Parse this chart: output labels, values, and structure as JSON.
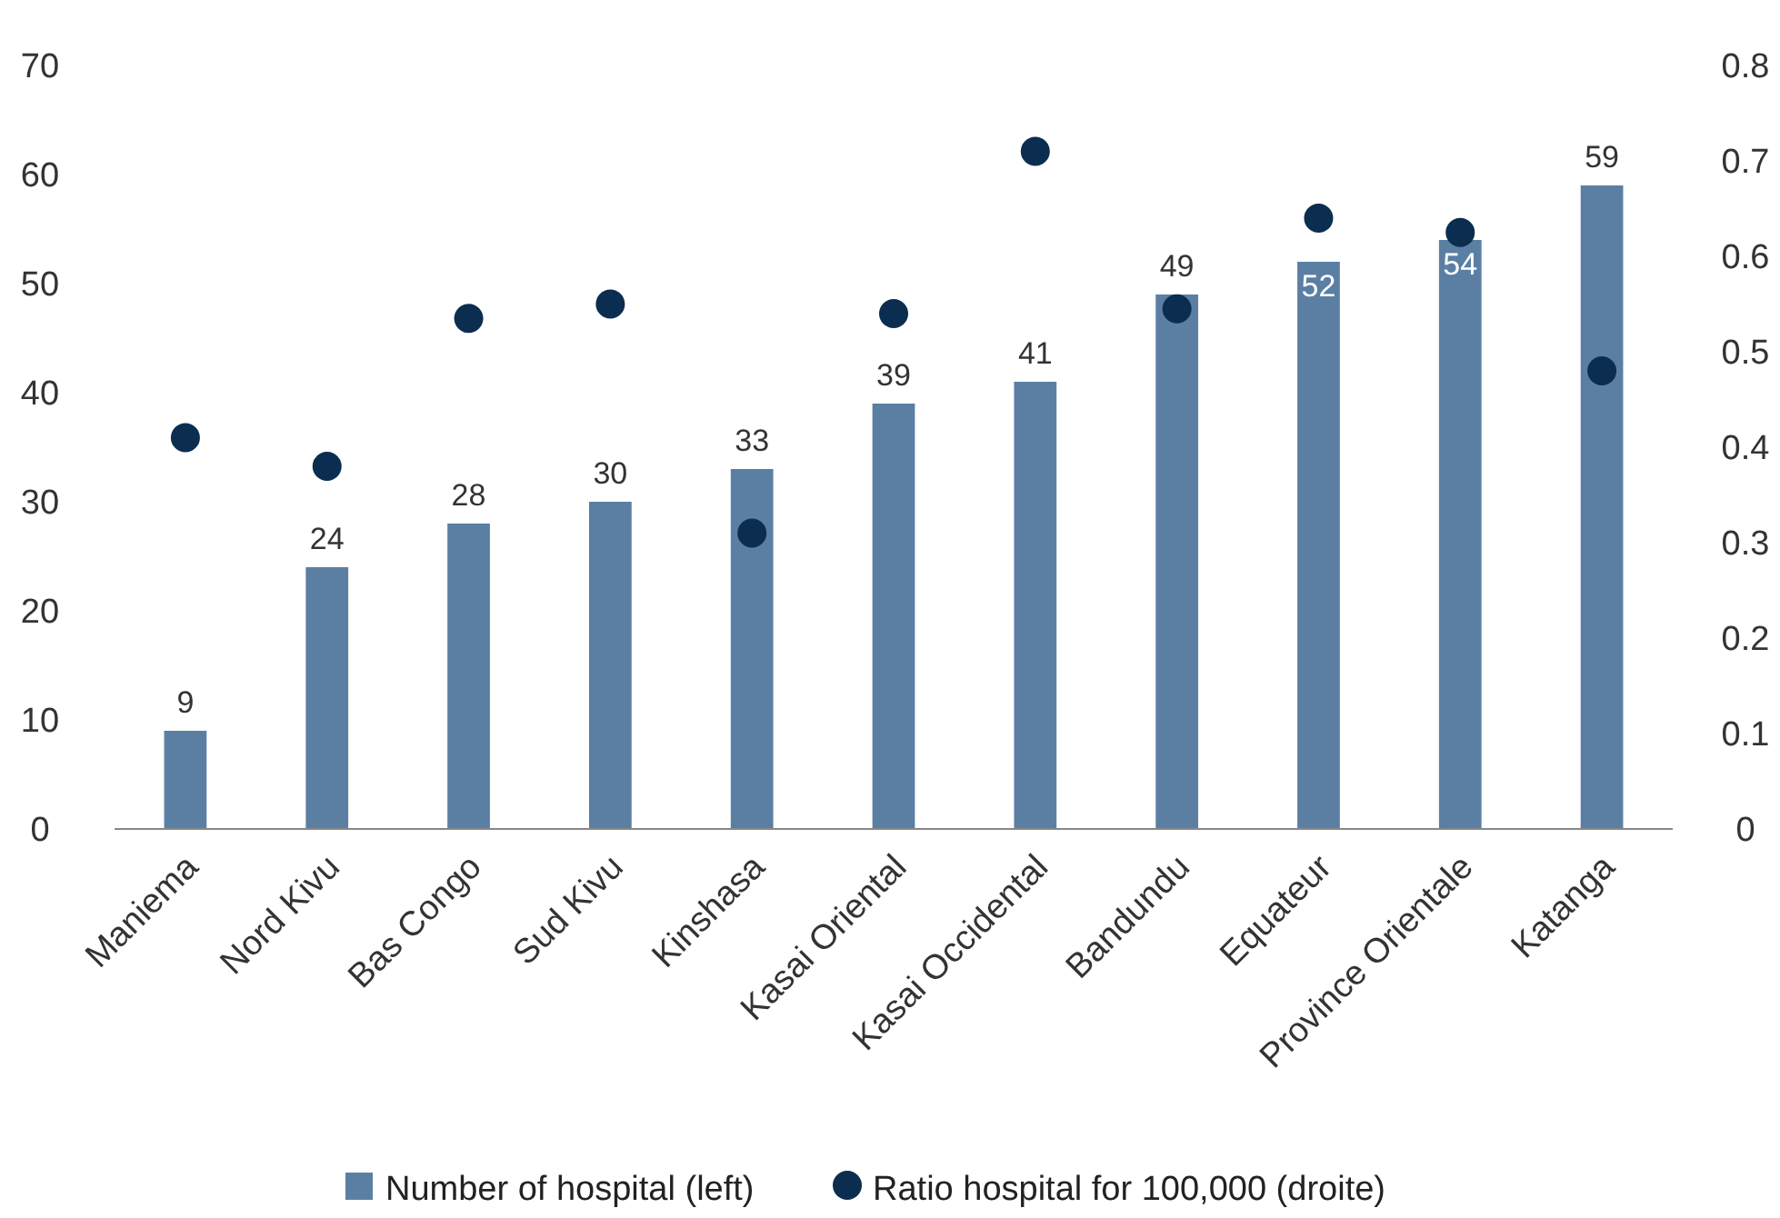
{
  "chart_data": {
    "type": "bar",
    "categories": [
      "Maniema",
      "Nord Kivu",
      "Bas Congo",
      "Sud Kivu",
      "Kinshasa",
      "Kasai Oriental",
      "Kasai Occidental",
      "Bandundu",
      "Equateur",
      "Province Orientale",
      "Katanga"
    ],
    "series": [
      {
        "name": "Number of hospital (left)",
        "color": "#5b7fa3",
        "values": [
          9,
          24,
          28,
          30,
          33,
          39,
          41,
          49,
          52,
          54,
          59
        ],
        "value_labels": [
          "9",
          "24",
          "28",
          "30",
          "33",
          "39",
          "41",
          "49",
          "52",
          "54",
          "59"
        ]
      },
      {
        "name": "Ratio hospital for 100,000 (droite)",
        "type": "scatter",
        "axis": "y2",
        "color": "#0b2d4f",
        "values": [
          0.41,
          0.38,
          0.535,
          0.55,
          0.31,
          0.54,
          0.71,
          0.545,
          0.64,
          0.625,
          0.48
        ]
      }
    ],
    "ylim": [
      0,
      70
    ],
    "yticks": [
      0,
      10,
      20,
      30,
      40,
      50,
      60,
      70
    ],
    "y2lim": [
      0,
      0.8
    ],
    "y2ticks": [
      0,
      0.1,
      0.2,
      0.3,
      0.4,
      0.5,
      0.6,
      0.7,
      0.8
    ],
    "legend": "bottom",
    "marker": "circle",
    "grid": false
  }
}
